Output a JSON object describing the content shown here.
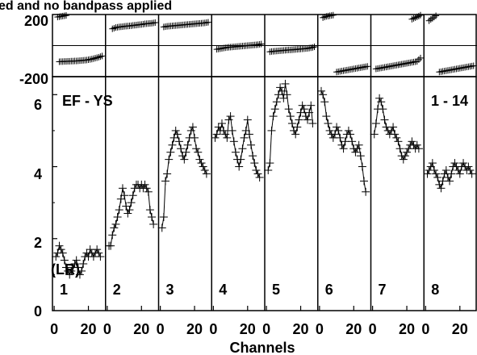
{
  "chart_data": [
    {
      "type": "scatter",
      "title": "ed and no bandpass applied",
      "ylim": [
        -200,
        200
      ],
      "y_ticks": [
        "200",
        "-200"
      ],
      "panels": [
        {
          "x": [
            2,
            3,
            4,
            5,
            6,
            7
          ],
          "y": [
            184,
            186,
            188,
            190,
            192,
            194
          ],
          "x2": [
            3,
            4,
            5,
            6,
            7,
            8,
            9,
            10,
            11,
            12,
            13,
            14,
            15,
            16,
            17,
            18,
            19,
            20,
            21,
            22,
            23,
            24,
            25,
            26,
            27,
            28
          ],
          "y2": [
            -104,
            -103,
            -103,
            -102,
            -102,
            -101,
            -101,
            -100,
            -100,
            -99,
            -99,
            -98,
            -97,
            -96,
            -95,
            -94,
            -93,
            -91,
            -89,
            -87,
            -84,
            -81,
            -78,
            -75,
            -71,
            -67
          ]
        },
        {
          "x": [
            3,
            4,
            5,
            6,
            7,
            8,
            9,
            10,
            11,
            12,
            13,
            14,
            15,
            16,
            17,
            18,
            19,
            20,
            21,
            22,
            23,
            24,
            25,
            26,
            27,
            28
          ],
          "y": [
            108,
            112,
            116,
            118,
            120,
            121,
            122,
            124,
            125,
            126,
            127,
            128,
            130,
            131,
            132,
            134,
            135,
            136,
            138,
            140,
            141,
            142,
            143,
            144,
            146,
            148
          ],
          "x2": [],
          "y2": []
        },
        {
          "x": [
            2,
            3,
            4,
            5,
            6,
            7,
            8,
            9,
            10,
            11,
            12,
            13,
            14,
            15,
            16,
            17,
            18,
            19,
            20,
            21,
            22,
            23,
            24,
            25,
            26,
            27,
            28
          ],
          "y": [
            120,
            122,
            124,
            125,
            126,
            127,
            128,
            129,
            130,
            131,
            132,
            133,
            134,
            135,
            136,
            137,
            138,
            139,
            140,
            141,
            142,
            143,
            144,
            145,
            146,
            148,
            150
          ],
          "x2": [],
          "y2": []
        },
        {
          "x": [
            2,
            3,
            4,
            5,
            6,
            7,
            8,
            9,
            10,
            11,
            12,
            13,
            14,
            15,
            16,
            17,
            18,
            19,
            20,
            21,
            22,
            23,
            24,
            25,
            26,
            27,
            28
          ],
          "y": [
            -24,
            -22,
            -20,
            -18,
            -16,
            -14,
            -12,
            -11,
            -10,
            -9,
            -8,
            -7,
            -6,
            -5,
            -4,
            -3,
            -2,
            -1,
            0,
            1,
            2,
            3,
            4,
            5,
            6,
            8,
            10
          ],
          "x2": [],
          "y2": []
        },
        {
          "x": [
            2,
            3,
            4,
            5,
            6,
            7,
            8,
            9,
            10,
            11,
            12,
            13,
            14,
            15,
            16,
            17,
            18,
            19,
            20,
            21,
            22,
            23,
            24,
            25,
            26,
            27,
            28
          ],
          "y": [
            -40,
            -38,
            -37,
            -36,
            -35,
            -34,
            -33,
            -32,
            -31,
            -30,
            -29,
            -28,
            -28,
            -27,
            -26,
            -25,
            -24,
            -23,
            -22,
            -21,
            -20,
            -19,
            -18,
            -16,
            -14,
            -12,
            -8
          ],
          "x2": [],
          "y2": []
        },
        {
          "x": [
            2,
            3,
            4,
            5,
            6,
            7,
            8
          ],
          "y": [
            180,
            184,
            188,
            190,
            192,
            194,
            196
          ],
          "x2": [
            10,
            11,
            12,
            13,
            14,
            15,
            16,
            17,
            18,
            19,
            20,
            21,
            22,
            23,
            24,
            25,
            26,
            27,
            28
          ],
          "y2": [
            -170,
            -168,
            -166,
            -164,
            -162,
            -160,
            -158,
            -156,
            -154,
            -152,
            -150,
            -148,
            -146,
            -144,
            -142,
            -140,
            -138,
            -136,
            -134
          ]
        },
        {
          "x": [
            23,
            24,
            25,
            26,
            27,
            28
          ],
          "y": [
            170,
            175,
            180,
            185,
            190,
            196
          ],
          "x2": [
            2,
            3,
            4,
            5,
            6,
            7,
            8,
            9,
            10,
            11,
            12,
            13,
            14,
            15,
            16,
            17,
            18,
            19,
            20,
            21,
            22,
            23,
            24,
            25,
            26,
            27,
            28
          ],
          "y2": [
            -150,
            -148,
            -146,
            -144,
            -142,
            -140,
            -138,
            -136,
            -134,
            -132,
            -130,
            -128,
            -126,
            -124,
            -122,
            -120,
            -118,
            -116,
            -114,
            -112,
            -110,
            -108,
            -106,
            -104,
            -102,
            -90,
            -80
          ]
        },
        {
          "x": [
            2,
            3,
            4,
            5,
            6
          ],
          "y": [
            160,
            168,
            176,
            184,
            192
          ],
          "x2": [
            8,
            9,
            10,
            11,
            12,
            13,
            14,
            15,
            16,
            17,
            18,
            19,
            20,
            21,
            22,
            23,
            24,
            25,
            26,
            27,
            28
          ],
          "y2": [
            -170,
            -168,
            -166,
            -164,
            -162,
            -160,
            -158,
            -156,
            -154,
            -152,
            -150,
            -148,
            -146,
            -144,
            -142,
            -140,
            -138,
            -136,
            -134,
            -132,
            -130
          ]
        }
      ]
    },
    {
      "type": "line",
      "xlabel": "Channels",
      "ylim": [
        0,
        6.5
      ],
      "y_ticks": [
        "0",
        "2",
        "4",
        "6"
      ],
      "x_ticks_per_panel": [
        "0",
        "20"
      ],
      "annotations": {
        "left": "EF - YS",
        "right": "1 - 14",
        "extra": "(LR)"
      },
      "panels": [
        {
          "label": "1",
          "x": [
            1,
            2,
            3,
            4,
            5,
            6,
            7,
            8,
            9,
            10,
            11,
            12,
            13,
            14,
            15,
            16,
            17,
            18,
            19,
            20,
            21,
            22,
            23,
            24,
            25,
            26,
            27
          ],
          "y": [
            1.5,
            1.6,
            1.8,
            1.7,
            1.6,
            1.4,
            1.2,
            1.1,
            1.0,
            1.1,
            1.2,
            1.3,
            1.4,
            1.2,
            1.0,
            1.1,
            1.3,
            1.5,
            1.6,
            1.5,
            1.7,
            1.6,
            1.5,
            1.6,
            1.7,
            1.6,
            1.5
          ]
        },
        {
          "label": "2",
          "x": [
            1,
            2,
            3,
            4,
            5,
            6,
            7,
            8,
            9,
            10,
            11,
            12,
            13,
            14,
            15,
            16,
            17,
            18,
            19,
            20,
            21,
            22,
            23,
            24,
            25,
            26,
            27
          ],
          "y": [
            1.8,
            1.8,
            2.1,
            2.3,
            2.4,
            2.6,
            2.8,
            3.1,
            3.4,
            3.2,
            2.9,
            2.7,
            2.8,
            3.0,
            3.2,
            3.4,
            3.5,
            3.5,
            3.4,
            3.5,
            3.4,
            3.5,
            3.4,
            3.3,
            2.8,
            2.6,
            2.4
          ]
        },
        {
          "label": "3",
          "x": [
            1,
            2,
            3,
            4,
            5,
            6,
            7,
            8,
            9,
            10,
            11,
            12,
            13,
            14,
            15,
            16,
            17,
            18,
            19,
            20,
            21,
            22,
            23,
            24,
            25,
            26,
            27
          ],
          "y": [
            2.3,
            2.6,
            3.6,
            3.8,
            4.2,
            4.4,
            4.6,
            4.8,
            5.0,
            4.9,
            4.7,
            4.5,
            4.3,
            4.2,
            4.4,
            4.6,
            4.8,
            5.0,
            5.1,
            4.8,
            4.5,
            4.4,
            4.2,
            4.1,
            4.0,
            3.9,
            3.8
          ]
        },
        {
          "label": "4",
          "x": [
            1,
            2,
            3,
            4,
            5,
            6,
            7,
            8,
            9,
            10,
            11,
            12,
            13,
            14,
            15,
            16,
            17,
            18,
            19,
            20,
            21,
            22,
            23,
            24,
            25,
            26,
            27
          ],
          "y": [
            4.8,
            4.9,
            5.1,
            5.0,
            5.2,
            5.0,
            4.9,
            4.8,
            5.3,
            5.4,
            5.0,
            4.7,
            4.4,
            4.2,
            4.0,
            4.2,
            4.5,
            4.8,
            5.0,
            5.3,
            4.9,
            4.6,
            4.3,
            4.1,
            3.9,
            3.8,
            3.7
          ]
        },
        {
          "label": "5",
          "x": [
            1,
            2,
            3,
            4,
            5,
            6,
            7,
            8,
            9,
            10,
            11,
            12,
            13,
            14,
            15,
            16,
            17,
            18,
            19,
            20,
            21,
            22,
            23,
            24,
            25,
            26,
            27
          ],
          "y": [
            3.9,
            4.1,
            5.0,
            5.4,
            5.6,
            5.8,
            6.0,
            6.2,
            6.1,
            5.9,
            6.3,
            6.0,
            5.6,
            5.4,
            5.2,
            5.0,
            4.9,
            5.1,
            5.3,
            5.5,
            5.7,
            5.6,
            5.4,
            5.3,
            5.5,
            5.7,
            5.2
          ]
        },
        {
          "label": "6",
          "x": [
            1,
            2,
            3,
            4,
            5,
            6,
            7,
            8,
            9,
            10,
            11,
            12,
            13,
            14,
            15,
            16,
            17,
            18,
            19,
            20,
            21,
            22,
            23,
            24,
            25,
            26,
            27
          ],
          "y": [
            6.1,
            6.0,
            5.8,
            5.4,
            5.2,
            5.0,
            4.9,
            4.8,
            4.9,
            5.1,
            5.0,
            4.8,
            4.6,
            4.5,
            4.7,
            4.9,
            5.0,
            4.9,
            4.7,
            4.5,
            4.4,
            4.5,
            4.6,
            4.3,
            4.0,
            3.6,
            3.3
          ]
        },
        {
          "label": "7",
          "x": [
            1,
            2,
            3,
            4,
            5,
            6,
            7,
            8,
            9,
            10,
            11,
            12,
            13,
            14,
            15,
            16,
            17,
            18,
            19,
            20,
            21,
            22,
            23,
            24,
            25,
            26,
            27
          ],
          "y": [
            4.9,
            5.2,
            5.6,
            5.9,
            5.8,
            5.6,
            5.3,
            5.1,
            5.0,
            4.9,
            5.0,
            5.1,
            4.9,
            4.8,
            4.7,
            4.5,
            4.3,
            4.2,
            4.3,
            4.4,
            4.5,
            4.6,
            4.7,
            4.6,
            4.5,
            4.6,
            4.5
          ]
        },
        {
          "label": "8",
          "x": [
            1,
            2,
            3,
            4,
            5,
            6,
            7,
            8,
            9,
            10,
            11,
            12,
            13,
            14,
            15,
            16,
            17,
            18,
            19,
            20,
            21,
            22,
            23,
            24,
            25,
            26,
            27
          ],
          "y": [
            3.8,
            3.9,
            4.0,
            4.1,
            3.9,
            3.8,
            3.7,
            3.5,
            3.4,
            3.6,
            3.8,
            3.9,
            3.7,
            3.6,
            3.8,
            4.0,
            4.1,
            4.0,
            3.9,
            3.8,
            4.0,
            4.1,
            4.0,
            3.9,
            4.0,
            3.9,
            3.8
          ]
        }
      ]
    }
  ]
}
